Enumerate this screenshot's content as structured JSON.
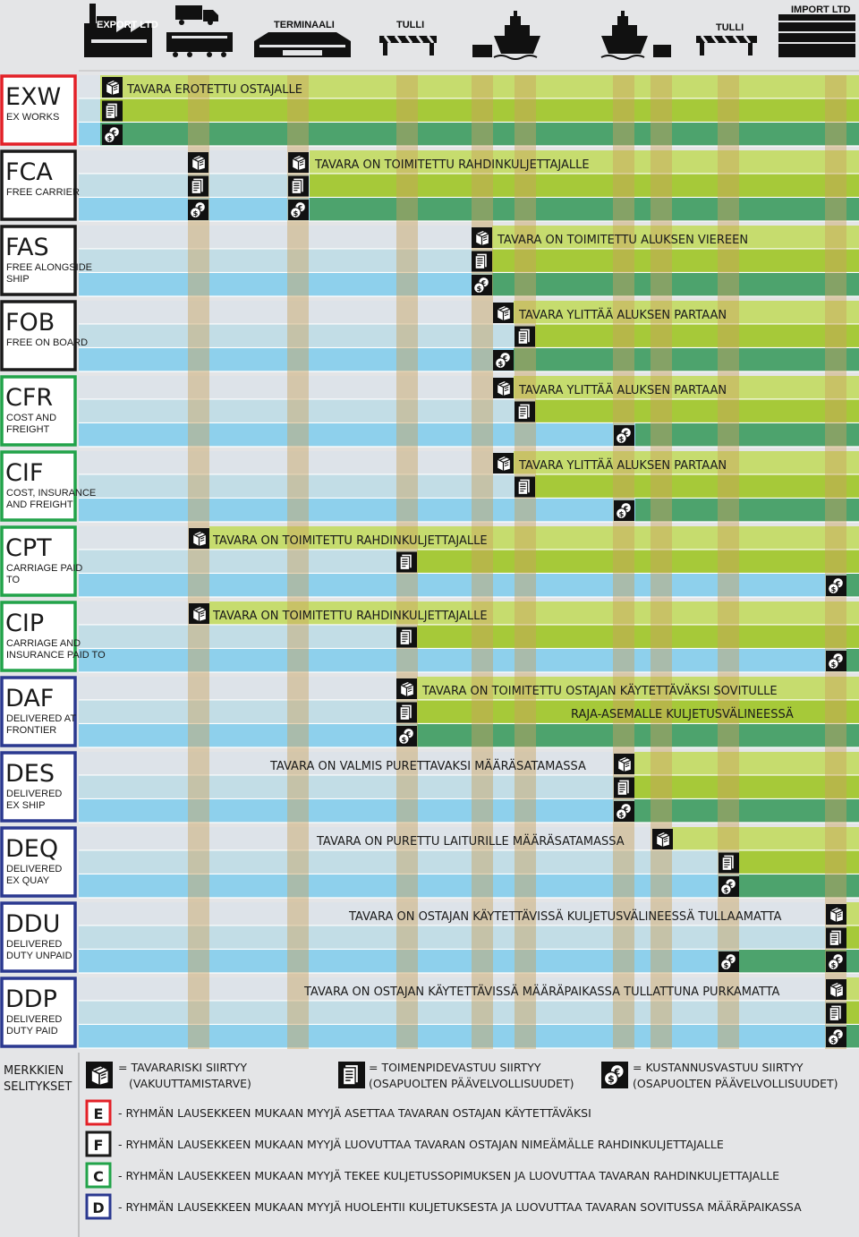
{
  "header": {
    "export_label": "EXPORT LTD",
    "terminal_label": "TERMINAALI",
    "customs_left_label": "TULLI",
    "customs_right_label": "TULLI",
    "import_label": "IMPORT LTD"
  },
  "colors": {
    "group_E": "#e32128",
    "group_F": "#1a1a1a",
    "group_C": "#22a34a",
    "group_D": "#2b3990",
    "row_risk_buyer": "#c6dc6e",
    "row_duty_buyer": "#a6c939",
    "row_cost_buyer": "#4da36d",
    "row_risk_seller": "#dde3e9",
    "row_duty_seller": "#c2dde6",
    "row_cost_seller": "#8ed0ec",
    "stripe": "#c9a25e"
  },
  "icons": {
    "risk": "box-risk-icon",
    "duty": "document-duty-icon",
    "cost": "money-cost-icon"
  },
  "terms": [
    {
      "code": "EXW",
      "name": [
        "EX WORKS"
      ],
      "group": "E",
      "label": "TAVARA EROTETTU OSTAJALLE",
      "label2": ""
    },
    {
      "code": "FCA",
      "name": [
        "FREE CARRIER"
      ],
      "group": "F",
      "label": "TAVARA ON TOIMITETTU RAHDINKULJETTAJALLE",
      "label2": ""
    },
    {
      "code": "FAS",
      "name": [
        "FREE ALONGSIDE",
        "SHIP"
      ],
      "group": "F",
      "label": "TAVARA ON TOIMITETTU ALUKSEN VIEREEN",
      "label2": ""
    },
    {
      "code": "FOB",
      "name": [
        "FREE ON BOARD"
      ],
      "group": "F",
      "label": "TAVARA YLITTÄÄ ALUKSEN PARTAAN",
      "label2": ""
    },
    {
      "code": "CFR",
      "name": [
        "COST AND",
        "FREIGHT"
      ],
      "group": "C",
      "label": "TAVARA YLITTÄÄ ALUKSEN PARTAAN",
      "label2": ""
    },
    {
      "code": "CIF",
      "name": [
        "COST, INSURANCE",
        "AND FREIGHT"
      ],
      "group": "C",
      "label": "TAVARA YLITTÄÄ ALUKSEN PARTAAN",
      "label2": ""
    },
    {
      "code": "CPT",
      "name": [
        "CARRIAGE PAID",
        "TO"
      ],
      "group": "C",
      "label": "TAVARA ON TOIMITETTU RAHDINKULJETTAJALLE",
      "label2": ""
    },
    {
      "code": "CIP",
      "name": [
        "CARRIAGE AND",
        "INSURANCE PAID TO"
      ],
      "group": "C",
      "label": "TAVARA ON TOIMITETTU RAHDINKULJETTAJALLE",
      "label2": ""
    },
    {
      "code": "DAF",
      "name": [
        "DELIVERED AT",
        "FRONTIER"
      ],
      "group": "D",
      "label": "TAVARA ON TOIMITETTU OSTAJAN KÄYTETTÄVÄKSI SOVITULLE",
      "label2": "RAJA-ASEMALLE KULJETUSVÄLINEESSÄ"
    },
    {
      "code": "DES",
      "name": [
        "DELIVERED",
        "EX SHIP"
      ],
      "group": "D",
      "label": "TAVARA ON VALMIS PURETTAVAKSI MÄÄRÄSATAMASSA",
      "label2": ""
    },
    {
      "code": "DEQ",
      "name": [
        "DELIVERED",
        "EX QUAY"
      ],
      "group": "D",
      "label": "TAVARA ON PURETTU LAITURILLE MÄÄRÄSATAMASSA",
      "label2": ""
    },
    {
      "code": "DDU",
      "name": [
        "DELIVERED",
        "DUTY UNPAID"
      ],
      "group": "D",
      "label": "TAVARA ON OSTAJAN KÄYTETTÄVISSÄ KULJETUSVÄLINEESSÄ TULLAAMATTA",
      "label2": ""
    },
    {
      "code": "DDP",
      "name": [
        "DELIVERED",
        "DUTY PAID"
      ],
      "group": "D",
      "label": "TAVARA ON OSTAJAN KÄYTETTÄVISSÄ MÄÄRÄPAIKASSA TULLATTUNA PURKAMATTA",
      "label2": ""
    }
  ],
  "legend": {
    "title": [
      "MERKKIEN",
      "SELITYKSET"
    ],
    "risk": [
      "= TAVARARISKI SIIRTYY",
      "(VAKUUTTAMISTARVE)"
    ],
    "duty": [
      "= TOIMENPIDEVASTUU SIIRTYY",
      "(OSAPUOLTEN PÄÄVELVOLLISUUDET)"
    ],
    "cost": [
      "= KUSTANNUSVASTUU SIIRTYY",
      "(OSAPUOLTEN PÄÄVELVOLLISUUDET)"
    ],
    "groups": [
      {
        "letter": "E",
        "text": "- RYHMÄN LAUSEKKEEN MUKAAN MYYJÄ ASETTAA TAVARAN OSTAJAN KÄYTETTÄVÄKSI"
      },
      {
        "letter": "F",
        "text": "- RYHMÄN LAUSEKKEEN MUKAAN MYYJÄ LUOVUTTAA TAVARAN OSTAJAN NIMEÄMÄLLE RAHDINKULJETTAJALLE"
      },
      {
        "letter": "C",
        "text": "- RYHMÄN LAUSEKKEEN MUKAAN MYYJÄ TEKEE KULJETUSSOPIMUKSEN JA LUOVUTTAA TAVARAN RAHDINKULJETTAJALLE"
      },
      {
        "letter": "D",
        "text": "- RYHMÄN LAUSEKKEEN MUKAAN MYYJÄ HUOLEHTII KULJETUKSESTA JA LUOVUTTAA TAVARAN SOVITUSSA MÄÄRÄPAIKASSA"
      }
    ]
  }
}
